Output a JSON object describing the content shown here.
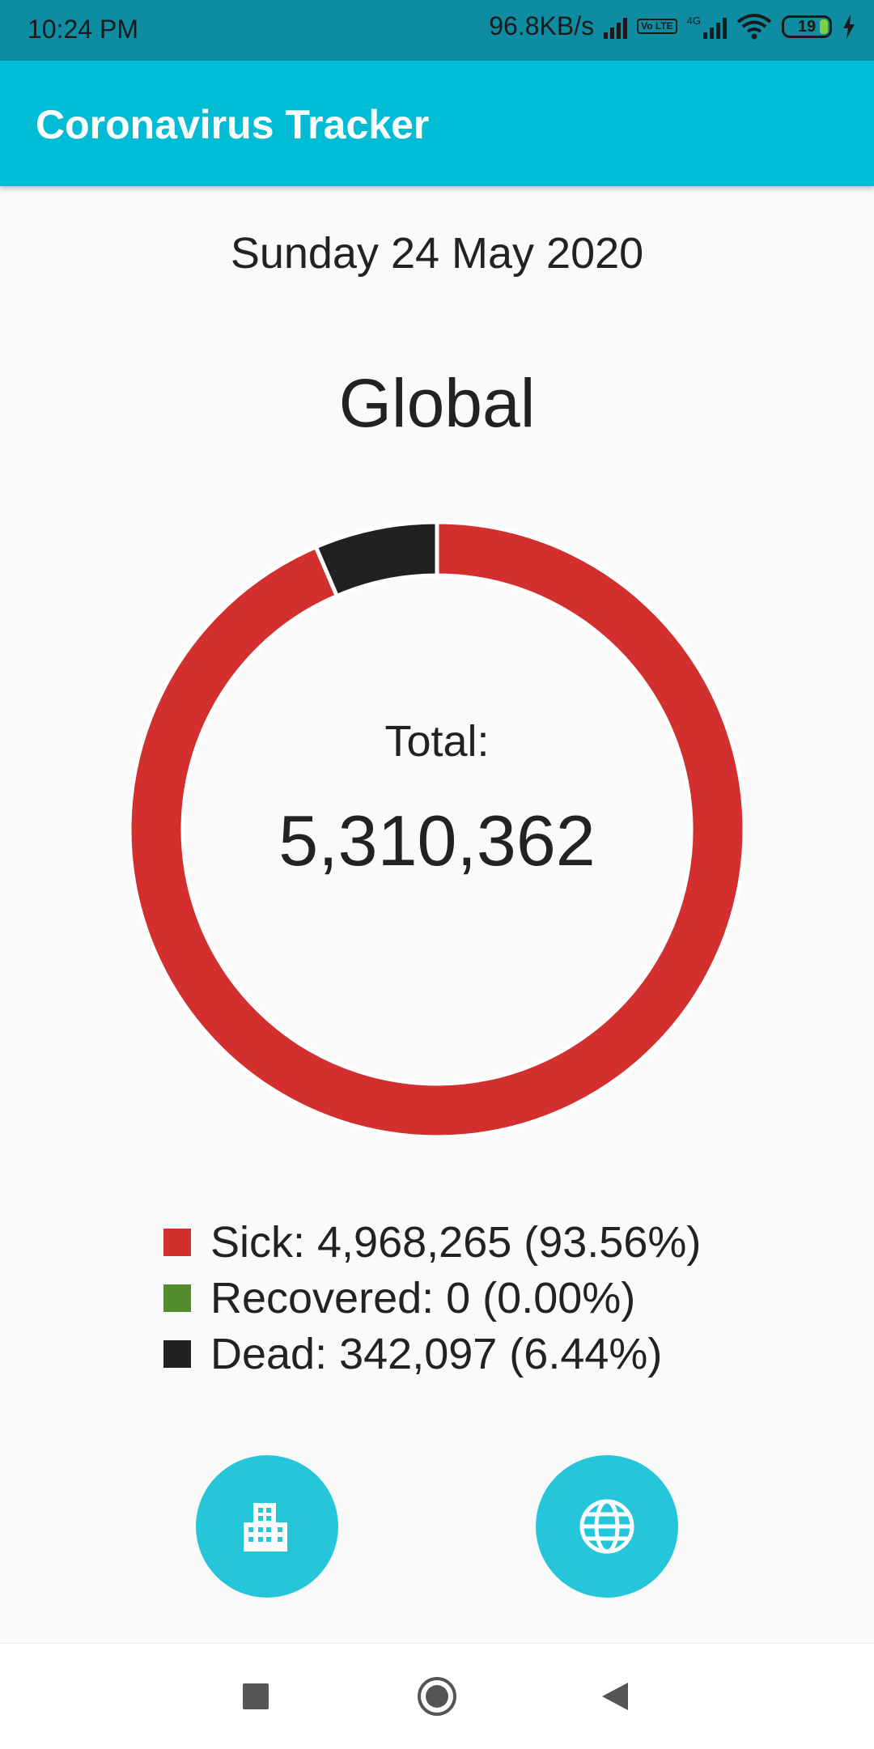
{
  "status_bar": {
    "time": "10:24 PM",
    "network_speed": "96.8KB/s",
    "volte_label": "Vo LTE",
    "network_type": "4G",
    "battery_level": "19",
    "icons": [
      "signal-icon",
      "volte-icon",
      "signal-4g-icon",
      "wifi-icon",
      "battery-icon",
      "charging-icon"
    ]
  },
  "app_bar": {
    "title": "Coronavirus Tracker"
  },
  "main": {
    "date": "Sunday 24 May 2020",
    "region": "Global",
    "total_label": "Total:",
    "total_value": "5,310,362"
  },
  "chart_data": {
    "type": "pie",
    "title": "",
    "series": [
      {
        "name": "Sick",
        "value": 4968265,
        "percent": 93.56,
        "color": "#d32f2f"
      },
      {
        "name": "Recovered",
        "value": 0,
        "percent": 0.0,
        "color": "#558b2f"
      },
      {
        "name": "Dead",
        "value": 342097,
        "percent": 6.44,
        "color": "#212121"
      }
    ],
    "total": 5310362
  },
  "legend": {
    "items": [
      {
        "text": "Sick: 4,968,265 (93.56%)",
        "color": "#d32f2f"
      },
      {
        "text": "Recovered: 0 (0.00%)",
        "color": "#558b2f"
      },
      {
        "text": "Dead: 342,097 (6.44%)",
        "color": "#212121"
      }
    ]
  },
  "actions": {
    "city_button_icon": "city-icon",
    "global_button_icon": "globe-icon",
    "button_color": "#26c6da"
  },
  "nav_bar": {
    "icons": [
      "recents-icon",
      "home-icon",
      "back-icon"
    ]
  },
  "colors": {
    "status_bar": "#0e8ca1",
    "app_bar": "#00bcd4",
    "background": "#fafafa"
  }
}
